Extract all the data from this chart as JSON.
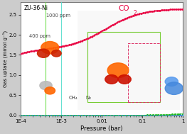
{
  "title_left": "ZU-36-Ni",
  "xlabel": "Pressure (bar)",
  "ylabel": "Gas uptake (mmol g⁻¹)",
  "ylim": [
    0.0,
    2.8
  ],
  "label_1000ppm": "1000 ppm",
  "label_400ppm": "400 ppm",
  "label_ch4": "CH₄",
  "label_n2": "N₂",
  "co2_color": "#e8003e",
  "ch4_color": "#22bb22",
  "n2_color": "#3388ff",
  "line_400ppm_color": "#66dd44",
  "line_1000ppm_color": "#55ddcc",
  "bg_color": "#cccccc",
  "plot_bg": "#ffffff",
  "p_400ppm": 0.0004,
  "p_1000ppm": 0.001,
  "co2_qmax1": 1.65,
  "co2_b1": 120000,
  "co2_qmax2": 1.0,
  "co2_b2": 80,
  "ch4_qmax": 0.12,
  "ch4_b": 0.5,
  "n2_qmax": 0.08,
  "n2_b": 0.12,
  "yticks": [
    0.0,
    0.5,
    1.0,
    1.5,
    2.0,
    2.5
  ],
  "xtick_labels": [
    "1E-4",
    "1E-3",
    "0.01",
    "0.1",
    "1"
  ]
}
